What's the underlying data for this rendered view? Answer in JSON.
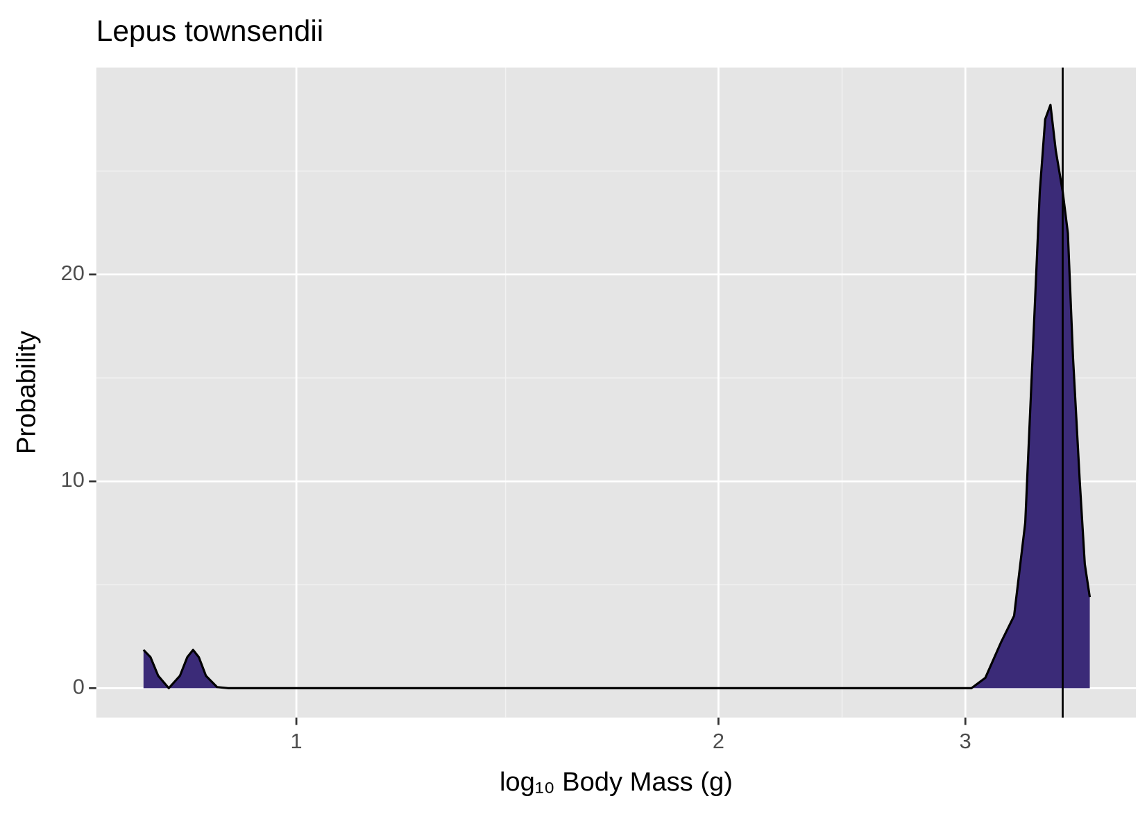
{
  "chart_data": {
    "type": "density",
    "title": "Lepus townsendii",
    "x_label": "log₁₀ Body Mass (g)",
    "y_label": "Probability",
    "x": [
      0.778,
      0.787,
      0.797,
      0.811,
      0.826,
      0.836,
      0.844,
      0.852,
      0.862,
      0.878,
      0.894,
      3.03,
      3.1,
      3.18,
      3.25,
      3.31,
      3.35,
      3.39,
      3.42,
      3.45,
      3.48,
      3.52,
      3.55,
      3.58,
      3.62,
      3.65,
      3.68
    ],
    "values": [
      1.85,
      1.5,
      0.6,
      0.0,
      0.6,
      1.5,
      1.85,
      1.5,
      0.6,
      0.05,
      0.0,
      0.0,
      0.5,
      2.2,
      3.5,
      8,
      16,
      24,
      27.5,
      28.2,
      26,
      24,
      22,
      16,
      10,
      6,
      4.4
    ],
    "color": "#3b2b78",
    "line_color": "#000000",
    "vline": 3.52,
    "xlog": true,
    "xlim": [
      0.72,
      3.97
    ],
    "ylim": [
      -1.42,
      30
    ],
    "xticks": [
      1,
      2,
      3
    ],
    "yticks": [
      0,
      10,
      20
    ],
    "xminor": [
      1.41,
      2.45
    ],
    "yminor": [
      5,
      15,
      25
    ],
    "grid": true
  }
}
